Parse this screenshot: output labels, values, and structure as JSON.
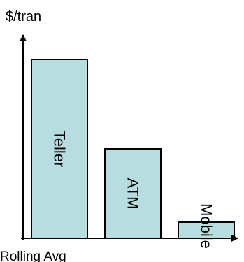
{
  "chart_data": {
    "type": "bar",
    "ylabel": "$/tran",
    "xlabel": "Rolling Avg",
    "categories": [
      "Teller",
      "ATM",
      "Mobile"
    ],
    "values": [
      100,
      50,
      9
    ],
    "ylim": [
      0,
      100
    ],
    "grid": false,
    "legend": "none",
    "bar_labels_inside": true,
    "colors": {
      "bar_fill": "#b7dde0",
      "bar_stroke": "#000000",
      "axis": "#000000"
    }
  }
}
